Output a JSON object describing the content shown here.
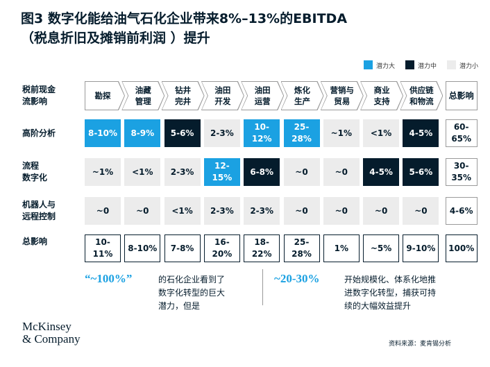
{
  "title": [
    "图3 数字化能给油气石化企业带来8%–13%的EBITDA",
    "（税息折旧及摊销前利润 ）提升"
  ],
  "legend": [
    {
      "label": "潜力大",
      "color": "#1ba1e2"
    },
    {
      "label": "潜力中",
      "color": "#051c2c"
    },
    {
      "label": "潜力小",
      "color": "#ececec"
    }
  ],
  "table": {
    "corner": "税前现金\n流影响",
    "columns": [
      "勘探",
      "油藏\n管理",
      "钻井\n完井",
      "油田\n开发",
      "油田\n运营",
      "炼化\n生产",
      "营销与\n贸易",
      "商业\n支持",
      "供应链\n和物流"
    ],
    "total_column": "总影响",
    "rows": [
      {
        "label": "高阶分析",
        "cells": [
          "8-10%",
          "8-9%",
          "5-6%",
          "2-3%",
          "10-\n12%",
          "25-\n28%",
          "~1%",
          "<1%",
          "4-5%"
        ],
        "levels": [
          0,
          0,
          1,
          2,
          0,
          0,
          2,
          2,
          1
        ],
        "total": "60-\n65%"
      },
      {
        "label": "流程\n数字化",
        "cells": [
          "~1%",
          "<1%",
          "2-3%",
          "12-\n15%",
          "6-8%",
          "~0",
          "~0",
          "4-5%",
          "5-6%"
        ],
        "levels": [
          2,
          2,
          2,
          0,
          1,
          2,
          2,
          1,
          1
        ],
        "total": "30-\n35%"
      },
      {
        "label": "机器人与\n远程控制",
        "cells": [
          "~0",
          "~0",
          "<1%",
          "2-3%",
          "2-3%",
          "~0",
          "~0",
          "~0",
          "~0"
        ],
        "levels": [
          2,
          2,
          2,
          2,
          2,
          2,
          2,
          2,
          2
        ],
        "total": "4-6%"
      }
    ],
    "total_row": {
      "label": "总影响",
      "cells": [
        "10-\n11%",
        "8-10%",
        "7-8%",
        "16-\n20%",
        "18-\n22%",
        "25-\n28%",
        "1%",
        "~5%",
        "9-10%"
      ],
      "total": "100%"
    }
  },
  "callouts": [
    {
      "highlight": "“~100%”",
      "text": "的石化企业看到了\n数字化转型的巨大\n潜力，但是"
    },
    {
      "highlight": "~20-30%",
      "text": "开始规模化、体系化地推\n进数字化转型，捕获可持\n续的大幅效益提升"
    }
  ],
  "logo": "McKinsey\n& Company",
  "source": "资料来源：麦肯锡分析"
}
